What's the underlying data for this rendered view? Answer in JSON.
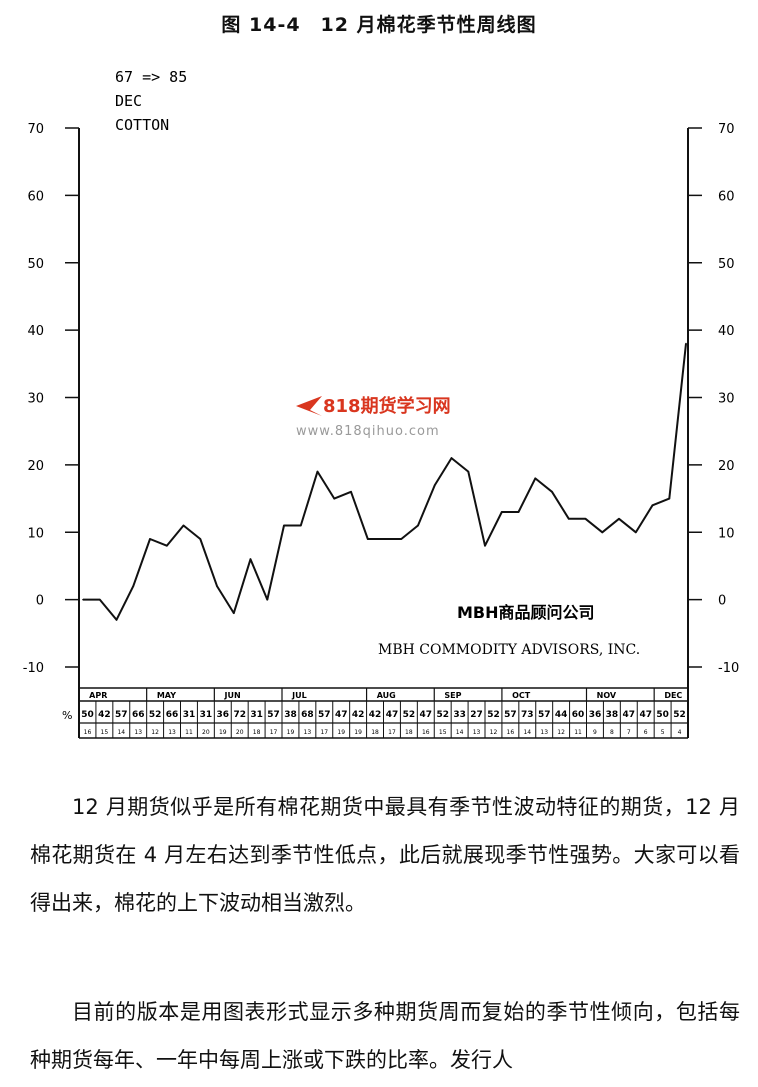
{
  "figure_title": "图 14-4　12 月棉花季节性周线图",
  "chart_data": {
    "type": "line",
    "header_lines": [
      "67 => 85",
      "DEC",
      "COTTON"
    ],
    "ylim": [
      -10,
      70
    ],
    "y_ticks": [
      70,
      60,
      50,
      40,
      30,
      20,
      10,
      0,
      -10
    ],
    "series": [
      {
        "values": [
          0,
          0,
          -3,
          2,
          9,
          8,
          11,
          9,
          2,
          -2,
          6,
          0,
          11,
          11,
          19,
          15,
          16,
          9,
          9,
          9,
          11,
          17,
          21,
          19,
          8,
          13,
          13,
          18,
          16,
          12,
          12,
          10,
          12,
          10,
          14,
          15,
          38
        ]
      }
    ],
    "months": [
      "APR",
      "MAY",
      "JUN",
      "JUL",
      "AUG",
      "SEP",
      "OCT",
      "NOV",
      "DEC"
    ],
    "row_label": "%",
    "week_percents": [
      "50",
      "42",
      "57",
      "66",
      "52",
      "66",
      "31",
      "31",
      "36",
      "72",
      "31",
      "57",
      "38",
      "68",
      "57",
      "47",
      "42",
      "42",
      "47",
      "52",
      "47",
      "52",
      "33",
      "27",
      "52",
      "57",
      "73",
      "57",
      "44",
      "60",
      "36",
      "38",
      "47",
      "47",
      "50",
      "52"
    ],
    "week_counts": [
      "16",
      "15",
      "14",
      "13",
      "12",
      "13",
      "11",
      "20",
      "19",
      "20",
      "18",
      "17",
      "19",
      "13",
      "17",
      "19",
      "19",
      "18",
      "17",
      "18",
      "16",
      "15",
      "14",
      "13",
      "12",
      "16",
      "14",
      "13",
      "12",
      "11",
      "9",
      "8",
      "7",
      "6",
      "5",
      "4"
    ],
    "watermark": {
      "brand": "818期货学习网",
      "url": "www.818qihuo.com"
    },
    "annotations": [
      "MBH商品顾问公司",
      "MBH COMMODITY ADVISORS, INC."
    ]
  },
  "paragraphs": [
    "12 月期货似乎是所有棉花期货中最具有季节性波动特征的期货，12 月棉花期货在 4 月左右达到季节性低点，此后就展现季节性强势。大家可以看得出来，棉花的上下波动相当激烈。",
    "目前的版本是用图表形式显示多种期货周而复始的季节性倾向，包括每种期货每年、一年中每周上涨或下跌的比率。发行人"
  ]
}
